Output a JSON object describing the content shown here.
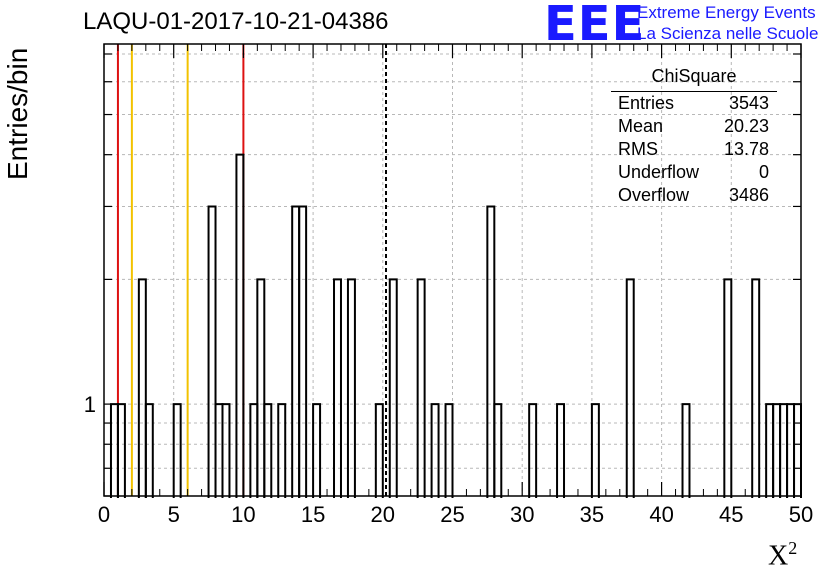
{
  "title": "LAQU-01-2017-10-21-04386",
  "logo": {
    "mark": "EEE",
    "line1": "Extreme Energy Events",
    "line2": "La Scienza nelle Scuole"
  },
  "stats": {
    "title": "ChiSquare",
    "rows": [
      {
        "label": "Entries",
        "value": "3543"
      },
      {
        "label": "Mean",
        "value": "20.23"
      },
      {
        "label": "RMS",
        "value": "13.78"
      },
      {
        "label": "Underflow",
        "value": "0"
      },
      {
        "label": "Overflow",
        "value": "3486"
      }
    ]
  },
  "colors": {
    "red": "#dd1111",
    "yellow": "#f2c200",
    "hist": "#000000",
    "grid": "#b8b8b8",
    "logo": "#1a1aff"
  },
  "chart_data": {
    "type": "histogram",
    "title": "LAQU-01-2017-10-21-04386",
    "xlabel": "X",
    "xlabel_superscript": "2",
    "ylabel": "Entries/bin",
    "xlim": [
      0,
      50
    ],
    "ylog": true,
    "ylim": [
      0.6,
      7.4
    ],
    "grid": true,
    "x_ticks": [
      0,
      5,
      10,
      15,
      20,
      25,
      30,
      35,
      40,
      45,
      50
    ],
    "y_tick_labels": [
      {
        "value": 1,
        "label": "1"
      }
    ],
    "bin_width": 0.5,
    "bins": [
      {
        "x": 0.5,
        "y": 1
      },
      {
        "x": 1.0,
        "y": 1
      },
      {
        "x": 2.5,
        "y": 2
      },
      {
        "x": 3.0,
        "y": 1
      },
      {
        "x": 5.0,
        "y": 1
      },
      {
        "x": 7.5,
        "y": 3
      },
      {
        "x": 8.0,
        "y": 1
      },
      {
        "x": 8.5,
        "y": 1
      },
      {
        "x": 9.5,
        "y": 4
      },
      {
        "x": 10.5,
        "y": 1
      },
      {
        "x": 11.0,
        "y": 2
      },
      {
        "x": 11.5,
        "y": 1
      },
      {
        "x": 12.5,
        "y": 1
      },
      {
        "x": 13.5,
        "y": 3
      },
      {
        "x": 14.0,
        "y": 3
      },
      {
        "x": 15.0,
        "y": 1
      },
      {
        "x": 16.5,
        "y": 2
      },
      {
        "x": 17.5,
        "y": 2
      },
      {
        "x": 19.5,
        "y": 1
      },
      {
        "x": 20.5,
        "y": 2
      },
      {
        "x": 22.5,
        "y": 2
      },
      {
        "x": 23.5,
        "y": 1
      },
      {
        "x": 24.5,
        "y": 1
      },
      {
        "x": 27.5,
        "y": 3
      },
      {
        "x": 28.0,
        "y": 1
      },
      {
        "x": 30.5,
        "y": 1
      },
      {
        "x": 32.5,
        "y": 1
      },
      {
        "x": 35.0,
        "y": 1
      },
      {
        "x": 37.5,
        "y": 2
      },
      {
        "x": 41.5,
        "y": 1
      },
      {
        "x": 44.5,
        "y": 2
      },
      {
        "x": 46.5,
        "y": 2
      },
      {
        "x": 47.5,
        "y": 1
      },
      {
        "x": 48.0,
        "y": 1
      },
      {
        "x": 48.5,
        "y": 1
      },
      {
        "x": 49.0,
        "y": 1
      },
      {
        "x": 49.5,
        "y": 1
      }
    ],
    "vertical_lines": [
      {
        "x": 1.0,
        "color": "red",
        "style": "solid"
      },
      {
        "x": 2.0,
        "color": "yellow",
        "style": "solid"
      },
      {
        "x": 6.0,
        "color": "yellow",
        "style": "solid"
      },
      {
        "x": 10.0,
        "color": "red",
        "style": "solid"
      },
      {
        "x": 20.23,
        "color": "black",
        "style": "dashed"
      }
    ]
  }
}
